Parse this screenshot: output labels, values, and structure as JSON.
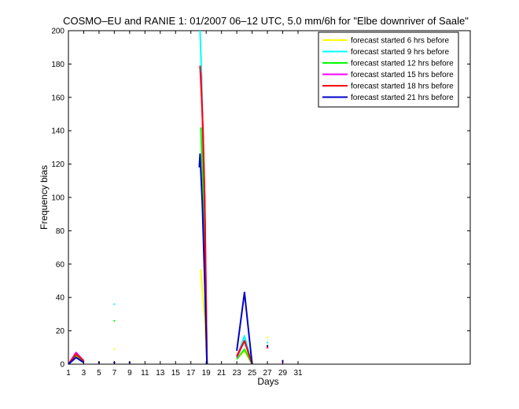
{
  "chart_data": {
    "type": "line",
    "title": "COSMO–EU and RANIE 1: 01/2007 06–12 UTC, 5.0 mm/6h for \"Elbe downriver of Saale\"",
    "xlabel": "Days",
    "ylabel": "Frequency bias",
    "xlim": [
      1,
      53.5
    ],
    "ylim": [
      0,
      200
    ],
    "xticks": [
      1,
      3,
      5,
      7,
      9,
      11,
      13,
      15,
      17,
      19,
      21,
      23,
      25,
      27,
      29,
      31
    ],
    "yticks": [
      0,
      20,
      40,
      60,
      80,
      100,
      120,
      140,
      160,
      180,
      200
    ],
    "legend_position": "top-right",
    "series": [
      {
        "name": "forecast started 6 hrs before",
        "color": "#ffff00",
        "lines": [
          [
            [
              1,
              0
            ],
            [
              2,
              5
            ],
            [
              3,
              1
            ]
          ],
          [
            [
              18.3,
              57
            ],
            [
              18.5,
              44
            ],
            [
              18.8,
              28
            ],
            [
              19.1,
              0
            ]
          ],
          [
            [
              23,
              3
            ],
            [
              24,
              8
            ],
            [
              25,
              0
            ]
          ]
        ],
        "markers": [
          [
            5,
            1
          ],
          [
            7,
            9
          ],
          [
            9,
            1
          ],
          [
            27,
            16
          ],
          [
            29,
            1
          ]
        ]
      },
      {
        "name": "forecast started 9 hrs before",
        "color": "#00ffff",
        "lines": [
          [
            [
              1,
              0
            ],
            [
              2,
              4
            ],
            [
              3,
              1
            ]
          ],
          [
            [
              18.2,
              200
            ],
            [
              18.4,
              172
            ],
            [
              18.6,
              128
            ],
            [
              18.8,
              66
            ],
            [
              19.1,
              0
            ]
          ],
          [
            [
              23,
              4
            ],
            [
              24,
              17
            ],
            [
              25,
              0
            ]
          ]
        ],
        "markers": [
          [
            5,
            1
          ],
          [
            7,
            36
          ],
          [
            9,
            1
          ],
          [
            27,
            13
          ],
          [
            29,
            1
          ]
        ]
      },
      {
        "name": "forecast started 12 hrs before",
        "color": "#00ff00",
        "lines": [
          [
            [
              1,
              0
            ],
            [
              2,
              5
            ],
            [
              3,
              1
            ]
          ],
          [
            [
              18.3,
              142
            ],
            [
              18.5,
              118
            ],
            [
              18.8,
              72
            ],
            [
              19.1,
              0
            ]
          ],
          [
            [
              23,
              3
            ],
            [
              24,
              9
            ],
            [
              25,
              0
            ]
          ]
        ],
        "markers": [
          [
            5,
            1
          ],
          [
            7,
            26
          ],
          [
            9,
            1
          ],
          [
            27,
            11
          ],
          [
            29,
            1
          ]
        ]
      },
      {
        "name": "forecast started 15 hrs before",
        "color": "#ff00ff",
        "lines": [
          [
            [
              1,
              0
            ],
            [
              2,
              7
            ],
            [
              3,
              2
            ]
          ],
          [
            [
              18.3,
              175
            ],
            [
              18.5,
              150
            ],
            [
              18.8,
              100
            ],
            [
              19.1,
              0
            ]
          ],
          [
            [
              23,
              4
            ],
            [
              24,
              14
            ],
            [
              25,
              0
            ]
          ]
        ],
        "markers": [
          [
            5,
            1
          ],
          [
            7,
            1
          ],
          [
            9,
            1
          ],
          [
            27,
            10
          ],
          [
            29,
            1
          ]
        ]
      },
      {
        "name": "forecast started 18 hrs before",
        "color": "#ff0000",
        "lines": [
          [
            [
              1,
              0
            ],
            [
              2,
              6
            ],
            [
              3,
              2
            ]
          ],
          [
            [
              18.2,
              179
            ],
            [
              18.4,
              160
            ],
            [
              18.6,
              138
            ],
            [
              18.8,
              98
            ],
            [
              19.1,
              0
            ]
          ],
          [
            [
              23,
              5
            ],
            [
              24,
              14
            ],
            [
              25,
              0
            ]
          ]
        ],
        "markers": [
          [
            5,
            1
          ],
          [
            7,
            1
          ],
          [
            9,
            1
          ],
          [
            27,
            10
          ],
          [
            29,
            2
          ]
        ]
      },
      {
        "name": "forecast started 21 hrs before",
        "color": "#0000cc",
        "lines": [
          [
            [
              1,
              0
            ],
            [
              2,
              4
            ],
            [
              3,
              1
            ]
          ],
          [
            [
              18.1,
              118
            ],
            [
              18.2,
              126
            ],
            [
              18.5,
              96
            ],
            [
              18.8,
              50
            ],
            [
              19.1,
              0
            ]
          ],
          [
            [
              23,
              8
            ],
            [
              24,
              43
            ],
            [
              25,
              0
            ]
          ]
        ],
        "markers": [
          [
            5,
            1
          ],
          [
            7,
            1
          ],
          [
            9,
            1
          ],
          [
            27,
            11
          ],
          [
            29,
            2
          ]
        ]
      }
    ]
  }
}
